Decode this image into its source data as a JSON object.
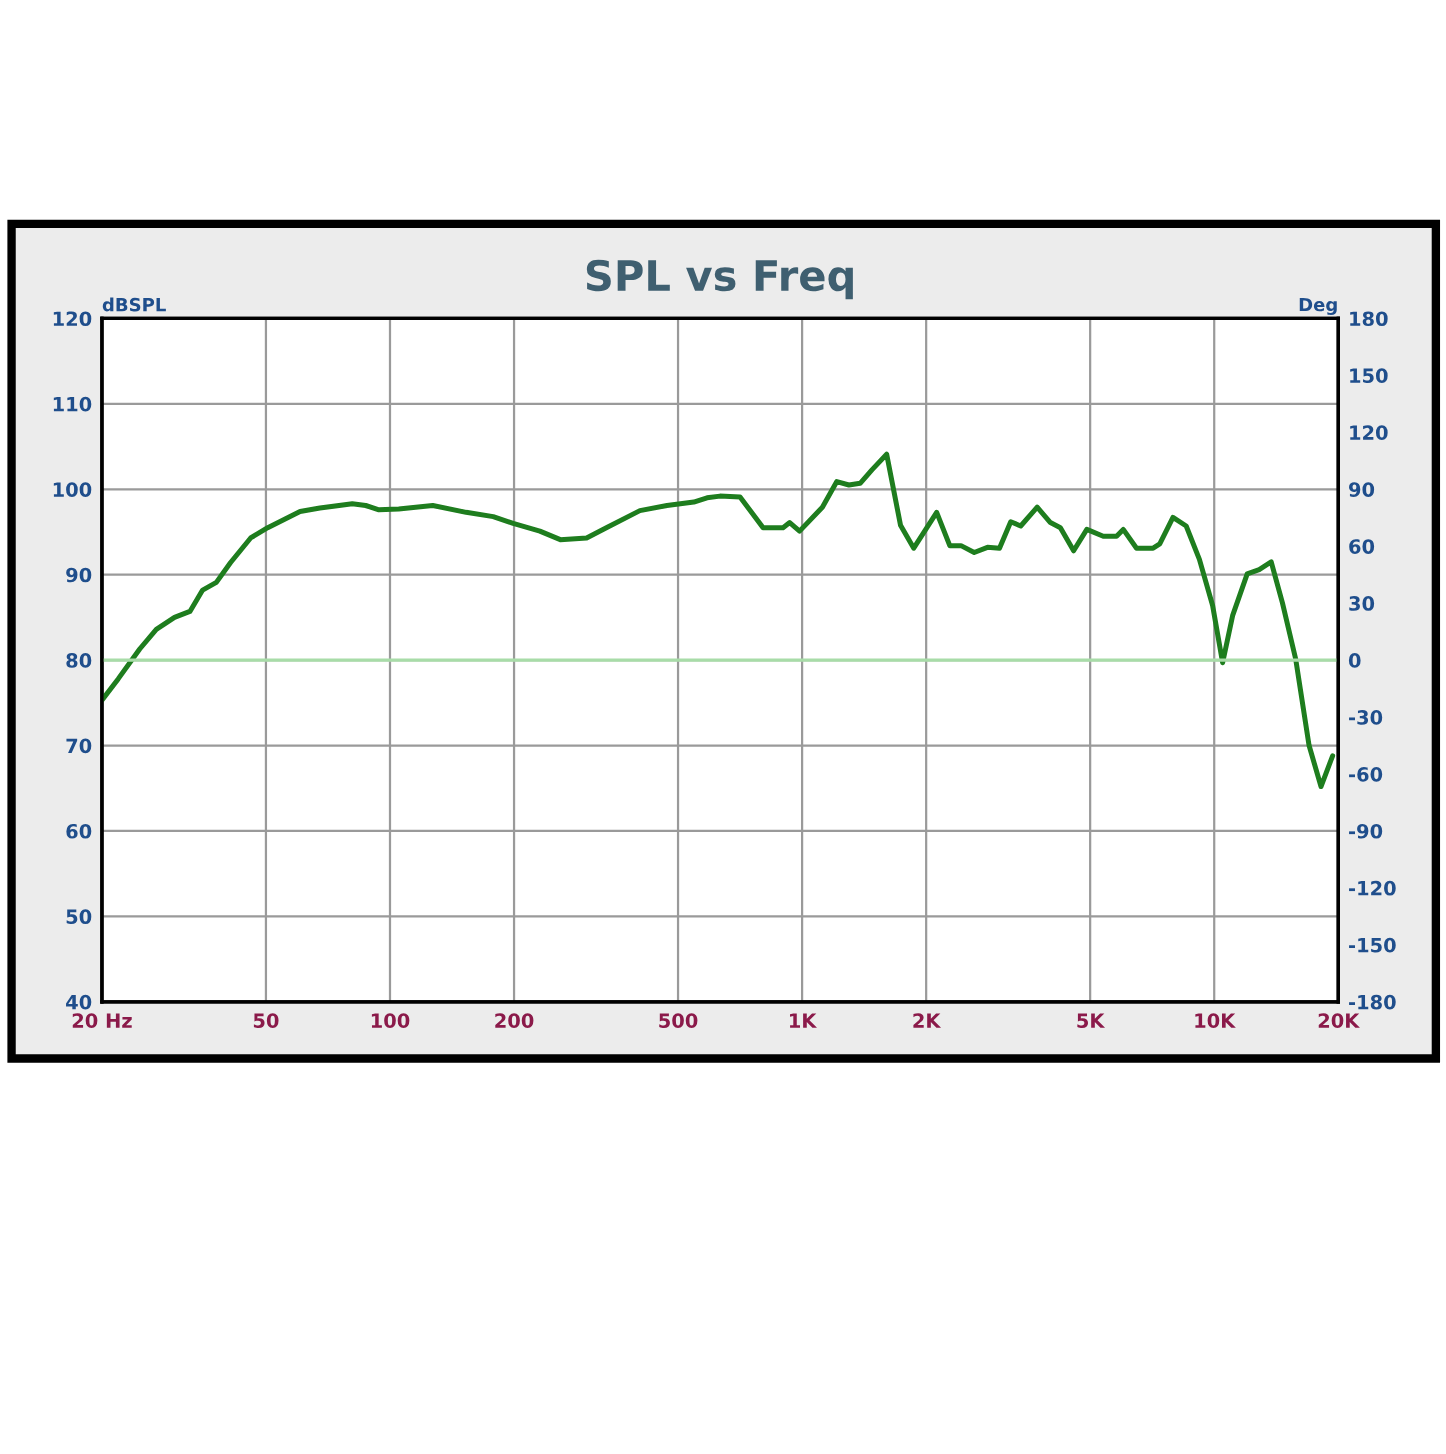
{
  "chart_data": {
    "type": "line",
    "title": "SPL vs Freq",
    "ylabel": "dBSPL",
    "y2label": "Deg",
    "log": "x",
    "grid": true,
    "legend": false,
    "line_style": "solid",
    "marker": "none",
    "xlim": [
      20,
      20000
    ],
    "xticks": [
      {
        "value": 20,
        "label": "20 Hz"
      },
      50,
      100,
      200,
      500,
      {
        "value": 1000,
        "label": "1K"
      },
      {
        "value": 2000,
        "label": "2K"
      },
      {
        "value": 5000,
        "label": "5K"
      },
      {
        "value": 10000,
        "label": "10K"
      },
      {
        "value": 20000,
        "label": "20K"
      }
    ],
    "ylim": [
      40,
      120
    ],
    "yticks": [
      40,
      50,
      60,
      70,
      80,
      90,
      100,
      110,
      120
    ],
    "y2lim": [
      -180,
      180
    ],
    "y2ticks": [
      -180,
      -150,
      -120,
      -90,
      -60,
      -30,
      0,
      30,
      60,
      90,
      120,
      150,
      180
    ],
    "ref_lines": [
      {
        "axis": "y2",
        "value": 0,
        "color": "#a8dca8",
        "line_style": "solid"
      }
    ],
    "series": [
      {
        "color": "#1e7d1e",
        "x": [
          20,
          21.9,
          24.7,
          27.1,
          30,
          32.7,
          35.1,
          37.9,
          41,
          45.9,
          50.5,
          60.5,
          67.6,
          81,
          87.3,
          94,
          105,
          127,
          153,
          178,
          199,
          231,
          259,
          300,
          335,
          404,
          470,
          546,
          588,
          632,
          707,
          804,
          899,
          933,
          986,
          1120,
          1214,
          1299,
          1383,
          1479,
          1604,
          1733,
          1866,
          2121,
          2282,
          2430,
          2616,
          2817,
          3013,
          3208,
          3392,
          3719,
          4004,
          4234,
          4559,
          4908,
          5380,
          5795,
          6016,
          6479,
          7108,
          7377,
          7942,
          8551,
          9206,
          9911,
          10480,
          11082,
          12024,
          12858,
          13750,
          14640,
          15770,
          16990,
          18160,
          19380
        ],
        "values": [
          75.3,
          77.8,
          81.3,
          83.6,
          85.0,
          85.7,
          88.2,
          89.1,
          91.4,
          94.3,
          95.5,
          97.4,
          97.8,
          98.3,
          98.1,
          97.6,
          97.7,
          98.1,
          97.3,
          96.8,
          96.0,
          95.1,
          94.1,
          94.3,
          95.5,
          97.5,
          98.1,
          98.5,
          99.0,
          99.2,
          99.1,
          95.5,
          95.5,
          96.1,
          95.1,
          97.9,
          100.9,
          100.5,
          100.7,
          102.3,
          104.1,
          95.8,
          93.1,
          97.3,
          93.4,
          93.4,
          92.6,
          93.2,
          93.1,
          96.2,
          95.7,
          97.9,
          96.1,
          95.5,
          92.8,
          95.3,
          94.5,
          94.5,
          95.3,
          93.1,
          93.1,
          93.6,
          96.7,
          95.7,
          91.8,
          86.4,
          79.7,
          85.2,
          90.1,
          90.6,
          91.5,
          86.7,
          80.1,
          70.0,
          65.2,
          68.8
        ]
      }
    ]
  }
}
